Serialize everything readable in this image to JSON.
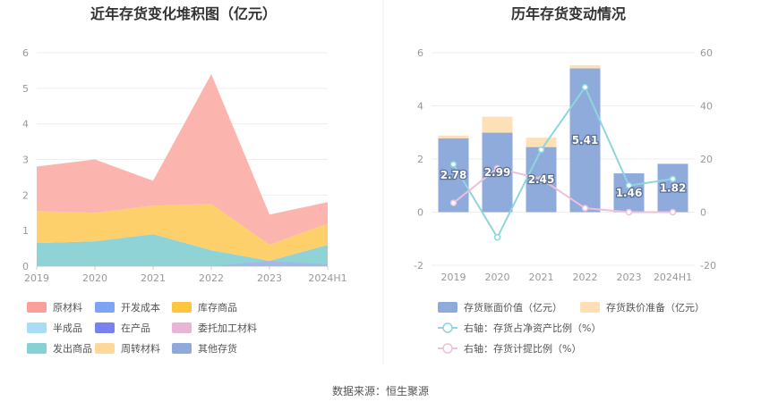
{
  "source": "数据来源：恒生聚源",
  "chart_data": [
    {
      "type": "area",
      "title": "近年存货变化堆积图（亿元）",
      "categories": [
        "2019",
        "2020",
        "2021",
        "2022",
        "2023",
        "2024H1"
      ],
      "ylim": [
        0,
        6
      ],
      "yticks": [
        "0",
        "1",
        "2",
        "3",
        "4",
        "5",
        "6"
      ],
      "series": [
        {
          "name": "发出商品",
          "color": "#8fd3d6",
          "values": [
            0.65,
            0.7,
            0.9,
            0.45,
            0.15,
            0.6
          ]
        },
        {
          "name": "库存商品",
          "color": "#fdd06b",
          "values": [
            0.9,
            0.8,
            0.8,
            1.3,
            0.45,
            0.6
          ]
        },
        {
          "name": "原材料",
          "color": "#fbb4ae",
          "values": [
            1.25,
            1.5,
            0.7,
            3.65,
            0.85,
            0.6
          ]
        },
        {
          "name": "开发成本",
          "color": "#a6b7e8",
          "values": [
            0,
            0,
            0,
            0,
            0.15,
            0.05
          ]
        }
      ],
      "legend": [
        {
          "name": "原材料",
          "color": "#f8a099",
          "shape": "rect"
        },
        {
          "name": "开发成本",
          "color": "#7fa3f5",
          "shape": "rect"
        },
        {
          "name": "库存商品",
          "color": "#fcc63f",
          "shape": "rect"
        },
        {
          "name": "半成品",
          "color": "#a7ddf7",
          "shape": "rect"
        },
        {
          "name": "在产品",
          "color": "#7a80ee",
          "shape": "rect"
        },
        {
          "name": "委托加工材料",
          "color": "#e8b5d8",
          "shape": "rect"
        },
        {
          "name": "发出商品",
          "color": "#85d1d4",
          "shape": "rect"
        },
        {
          "name": "周转材料",
          "color": "#fdd89a",
          "shape": "rect"
        },
        {
          "name": "其他存货",
          "color": "#8fa9dc",
          "shape": "rect"
        }
      ]
    },
    {
      "type": "bar+line",
      "title": "历年存货变动情况",
      "categories": [
        "2019",
        "2020",
        "2021",
        "2022",
        "2023",
        "2024H1"
      ],
      "ylim_left": [
        -2,
        6
      ],
      "yticks_left": [
        "-2",
        "0",
        "2",
        "4",
        "6"
      ],
      "ylim_right": [
        -20,
        60
      ],
      "yticks_right": [
        "-20",
        "0",
        "20",
        "40",
        "60"
      ],
      "bars": [
        {
          "name": "存货账面价值（亿元）",
          "color": "#8eabdb",
          "values": [
            2.78,
            2.99,
            2.45,
            5.41,
            1.46,
            1.82
          ]
        },
        {
          "name": "存货跌价准备（亿元）",
          "color": "#fde0b5",
          "values": [
            0.1,
            0.6,
            0.35,
            0.12,
            0,
            0
          ]
        }
      ],
      "bar_labels": [
        "2.78",
        "2.99",
        "2.45",
        "5.41",
        "1.46",
        "1.82"
      ],
      "lines": [
        {
          "name": "右轴：存货占净资产比例（%）",
          "color": "#8ed5dc",
          "values": [
            18,
            -9.5,
            23.5,
            47,
            10,
            12.5
          ]
        },
        {
          "name": "右轴：存货计提比例（%）",
          "color": "#ecc0dc",
          "values": [
            3.5,
            16.5,
            12.5,
            1.5,
            0,
            0
          ]
        }
      ]
    }
  ]
}
